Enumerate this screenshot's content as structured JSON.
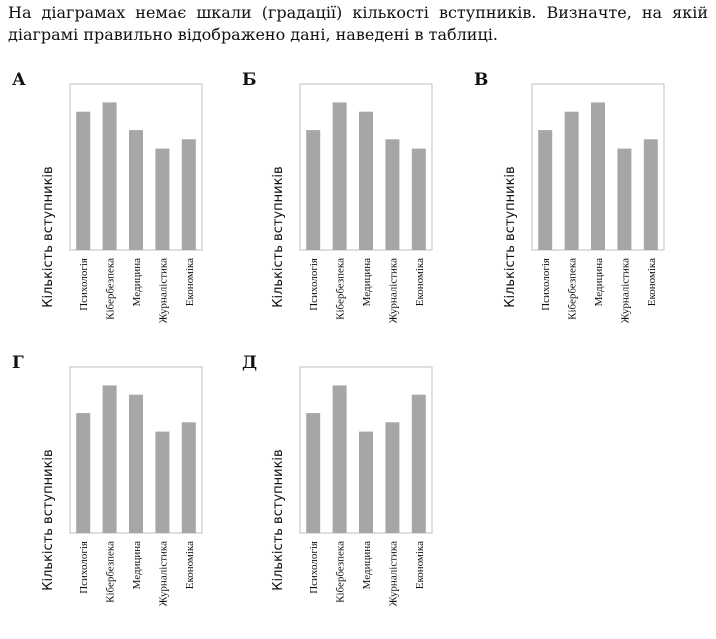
{
  "question": {
    "line1": "На діаграмах немає шкали (градації) кількості вступників. Визначте, на якій",
    "line2": "діаграмі правильно відображено дані, наведені в таблиці."
  },
  "colors": {
    "bar": "#a6a6a6",
    "frame": "#bfbfbf"
  },
  "chart_data": [
    {
      "type": "bar",
      "label": "А",
      "ylabel": "Кількість вступників",
      "categories": [
        "Психологія",
        "Кібербезпека",
        "Медицина",
        "Журналістика",
        "Економіка"
      ],
      "values": [
        75,
        80,
        65,
        55,
        60
      ],
      "ylim": [
        0,
        90
      ]
    },
    {
      "type": "bar",
      "label": "Б",
      "ylabel": "Кількість вступників",
      "categories": [
        "Психологія",
        "Кібербезпека",
        "Медицина",
        "Журналістика",
        "Економіка"
      ],
      "values": [
        65,
        80,
        75,
        60,
        55
      ],
      "ylim": [
        0,
        90
      ]
    },
    {
      "type": "bar",
      "label": "В",
      "ylabel": "Кількість вступників",
      "categories": [
        "Психологія",
        "Кібербезпека",
        "Медицина",
        "Журналістика",
        "Економіка"
      ],
      "values": [
        65,
        75,
        80,
        55,
        60
      ],
      "ylim": [
        0,
        90
      ]
    },
    {
      "type": "bar",
      "label": "Г",
      "ylabel": "Кількість вступників",
      "categories": [
        "Психологія",
        "Кібербезпека",
        "Медицина",
        "Журналістика",
        "Економіка"
      ],
      "values": [
        65,
        80,
        75,
        55,
        60
      ],
      "ylim": [
        0,
        90
      ]
    },
    {
      "type": "bar",
      "label": "Д",
      "ylabel": "Кількість вступників",
      "categories": [
        "Психологія",
        "Кібербезпека",
        "Медицина",
        "Журналістика",
        "Економіка"
      ],
      "values": [
        65,
        80,
        55,
        60,
        75
      ],
      "ylim": [
        0,
        90
      ]
    }
  ]
}
